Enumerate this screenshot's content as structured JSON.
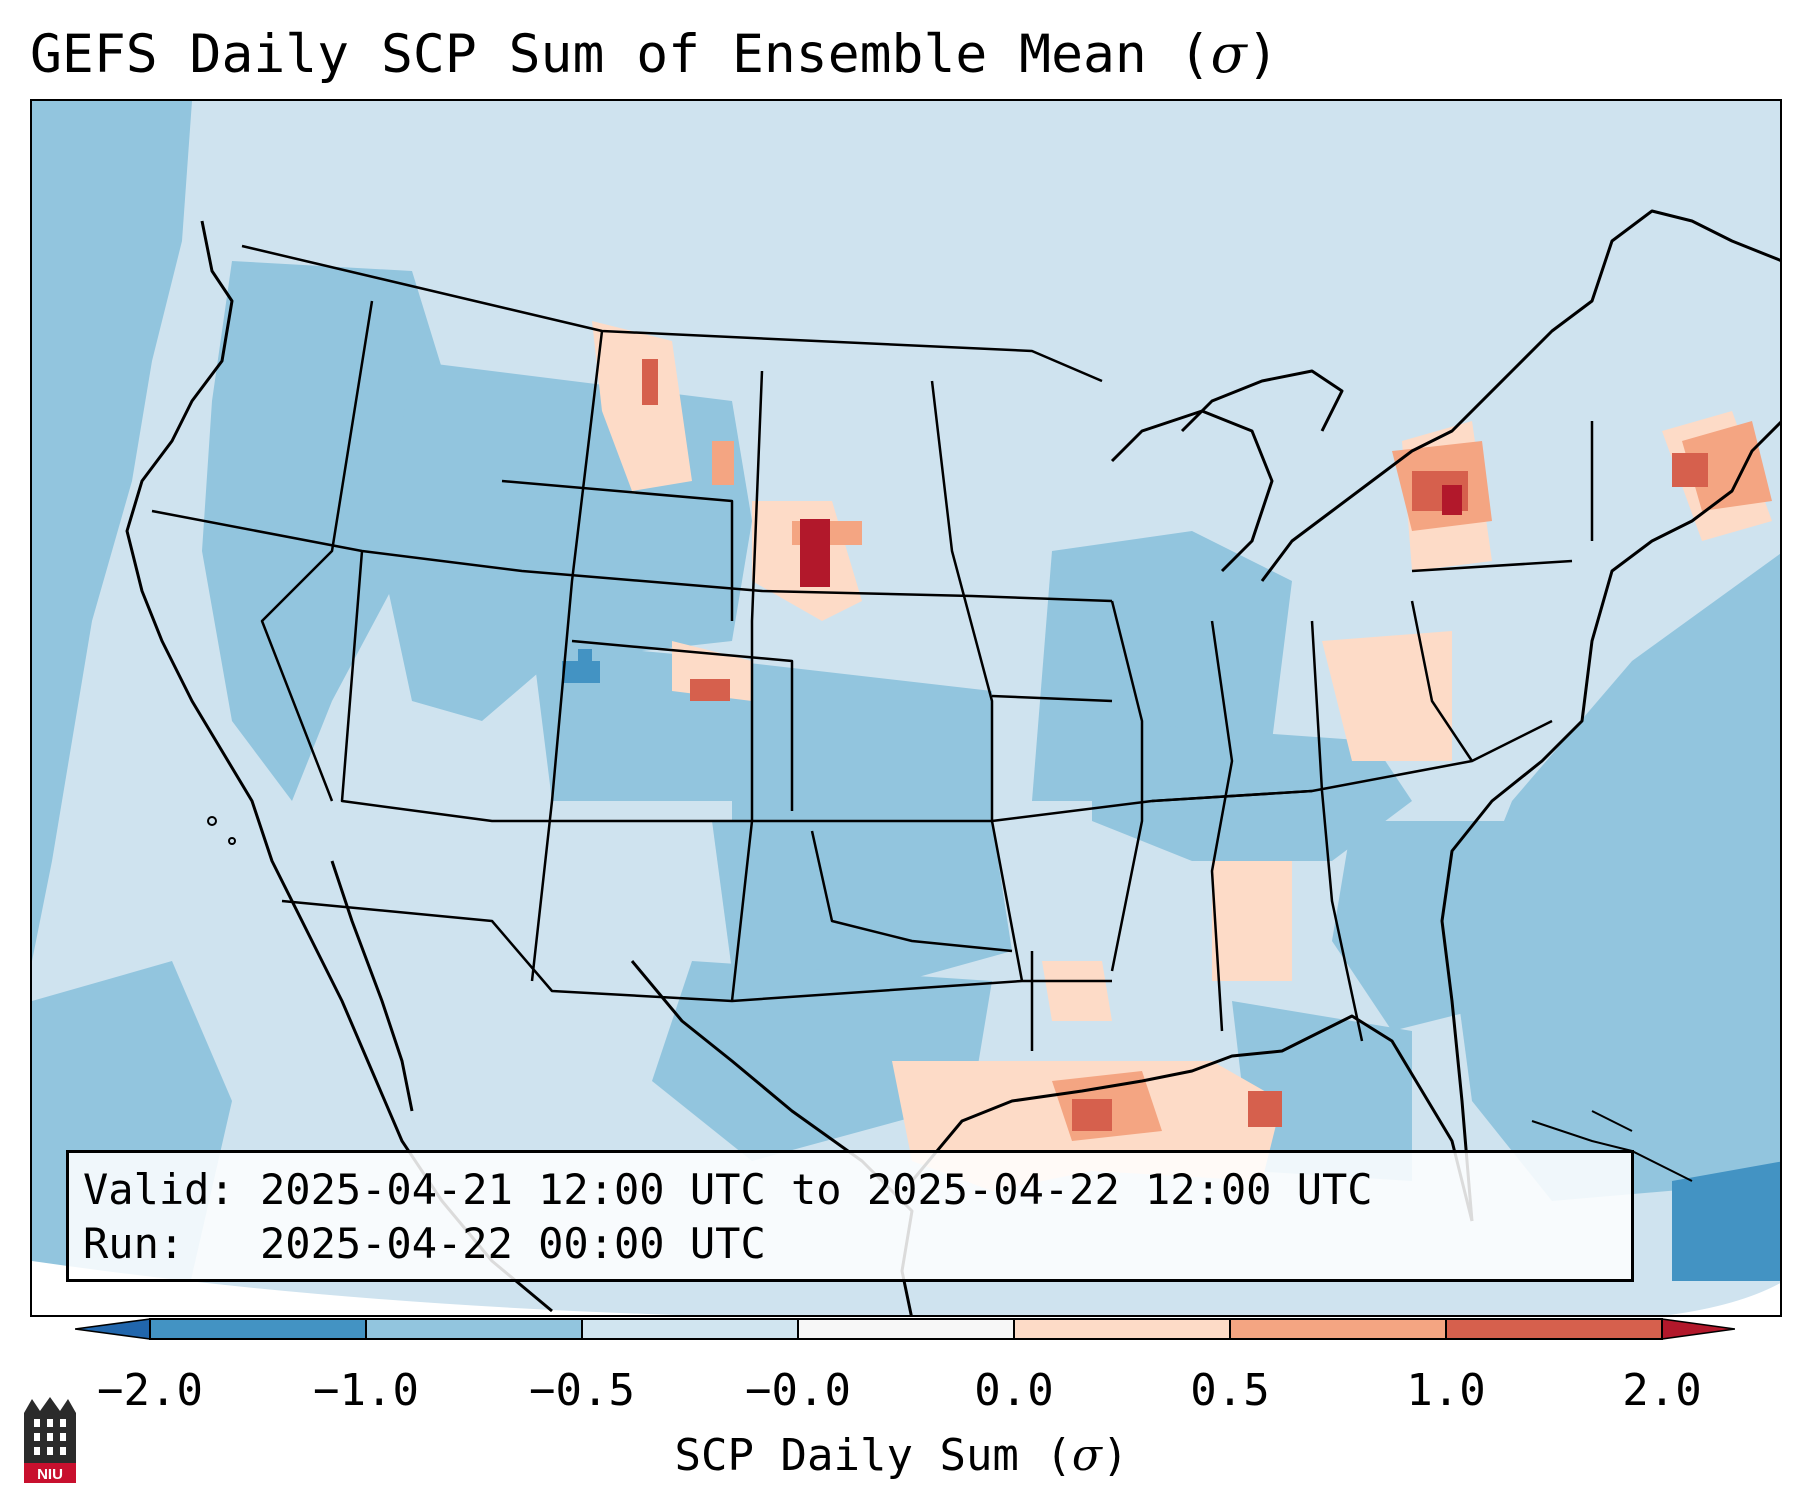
{
  "title": {
    "text": "GEFS Daily SCP Sum of Ensemble Mean (",
    "sigma": "σ",
    "close": ")"
  },
  "info": {
    "line1": "Valid: 2025-04-21 12:00 UTC to 2025-04-22 12:00 UTC",
    "line2": "Run:   2025-04-22 00:00 UTC"
  },
  "colorbar": {
    "ticks": [
      "−2.0",
      "−1.0",
      "−0.5",
      "−0.0",
      "0.0",
      "0.5",
      "1.0",
      "2.0"
    ],
    "label_text": "SCP Daily Sum (",
    "label_sigma": "σ",
    "label_close": ")",
    "colors": [
      "#4393c3",
      "#92c5de",
      "#d1e5f0",
      "#f7f7f7",
      "#fddbc7",
      "#f4a582",
      "#d6604d",
      "#b2182b"
    ],
    "extend_low_color": "#2166ac",
    "extend_high_color": "#b2182b"
  },
  "logo": {
    "text": "NIU",
    "color": "#c8102e"
  }
}
